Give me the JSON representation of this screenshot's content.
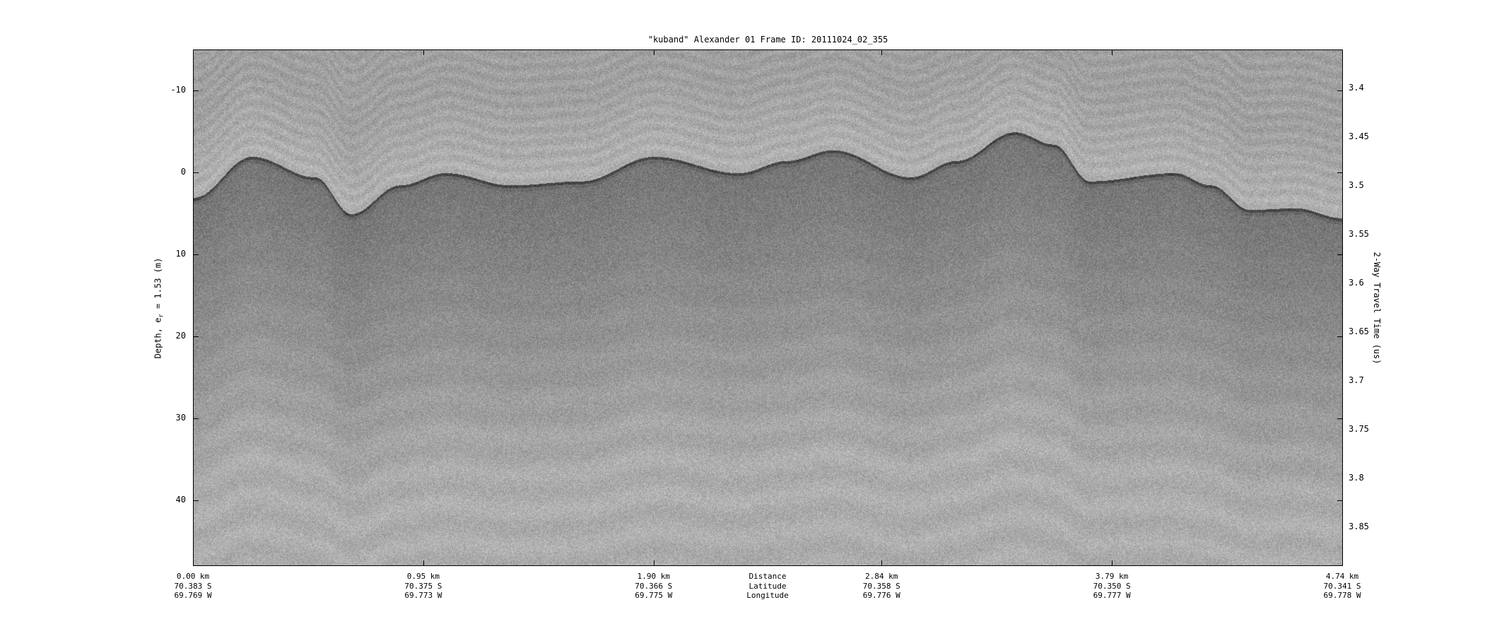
{
  "chart_data": {
    "type": "heatmap",
    "title": "\"kuband\" Alexander 01 Frame ID: 20111024_02_355",
    "ylabel_left": {
      "text": "Depth, e",
      "sub": "r",
      "rest": " = 1.53 (m)"
    },
    "ylabel_right": "2-Way Travel Time (us)",
    "colormap": "gray",
    "ylim_depth_m": [
      -15,
      48
    ],
    "y_left_ticks": [
      -10,
      0,
      10,
      20,
      30,
      40
    ],
    "ylim_twtt_us": [
      3.36,
      3.89
    ],
    "y_right_ticks": [
      "3.4",
      "3.45",
      "3.5",
      "3.55",
      "3.6",
      "3.65",
      "3.7",
      "3.75",
      "3.8",
      "3.85"
    ],
    "xlim_km": [
      0,
      4.74
    ],
    "x_ticks": [
      {
        "distance": "0.00 km",
        "latitude": "70.383 S",
        "longitude": "69.769 W"
      },
      {
        "distance": "0.95 km",
        "latitude": "70.375 S",
        "longitude": "69.773 W"
      },
      {
        "distance": "1.90 km",
        "latitude": "70.366 S",
        "longitude": "69.775 W"
      },
      {
        "distance": "2.84 km",
        "latitude": "70.358 S",
        "longitude": "69.776 W"
      },
      {
        "distance": "3.79 km",
        "latitude": "70.350 S",
        "longitude": "69.777 W"
      },
      {
        "distance": "4.74 km",
        "latitude": "70.341 S",
        "longitude": "69.778 W"
      }
    ],
    "x_row_labels": {
      "distance": "Distance",
      "latitude": "Latitude",
      "longitude": "Longitude"
    },
    "surface_reflector": {
      "distance_km": [
        0,
        0.24,
        0.5,
        0.65,
        0.85,
        1.04,
        1.31,
        1.6,
        1.9,
        2.25,
        2.45,
        2.64,
        2.96,
        3.15,
        3.39,
        3.55,
        3.7,
        4.05,
        4.2,
        4.36,
        4.55,
        4.74
      ],
      "depth_m": [
        3,
        -2,
        0.5,
        5,
        1.5,
        0,
        1.5,
        1,
        -2,
        0,
        -1.5,
        -2.8,
        0.5,
        -1.5,
        -5,
        -3.5,
        1,
        0,
        1.5,
        4.5,
        4.3,
        5.5
      ]
    }
  }
}
